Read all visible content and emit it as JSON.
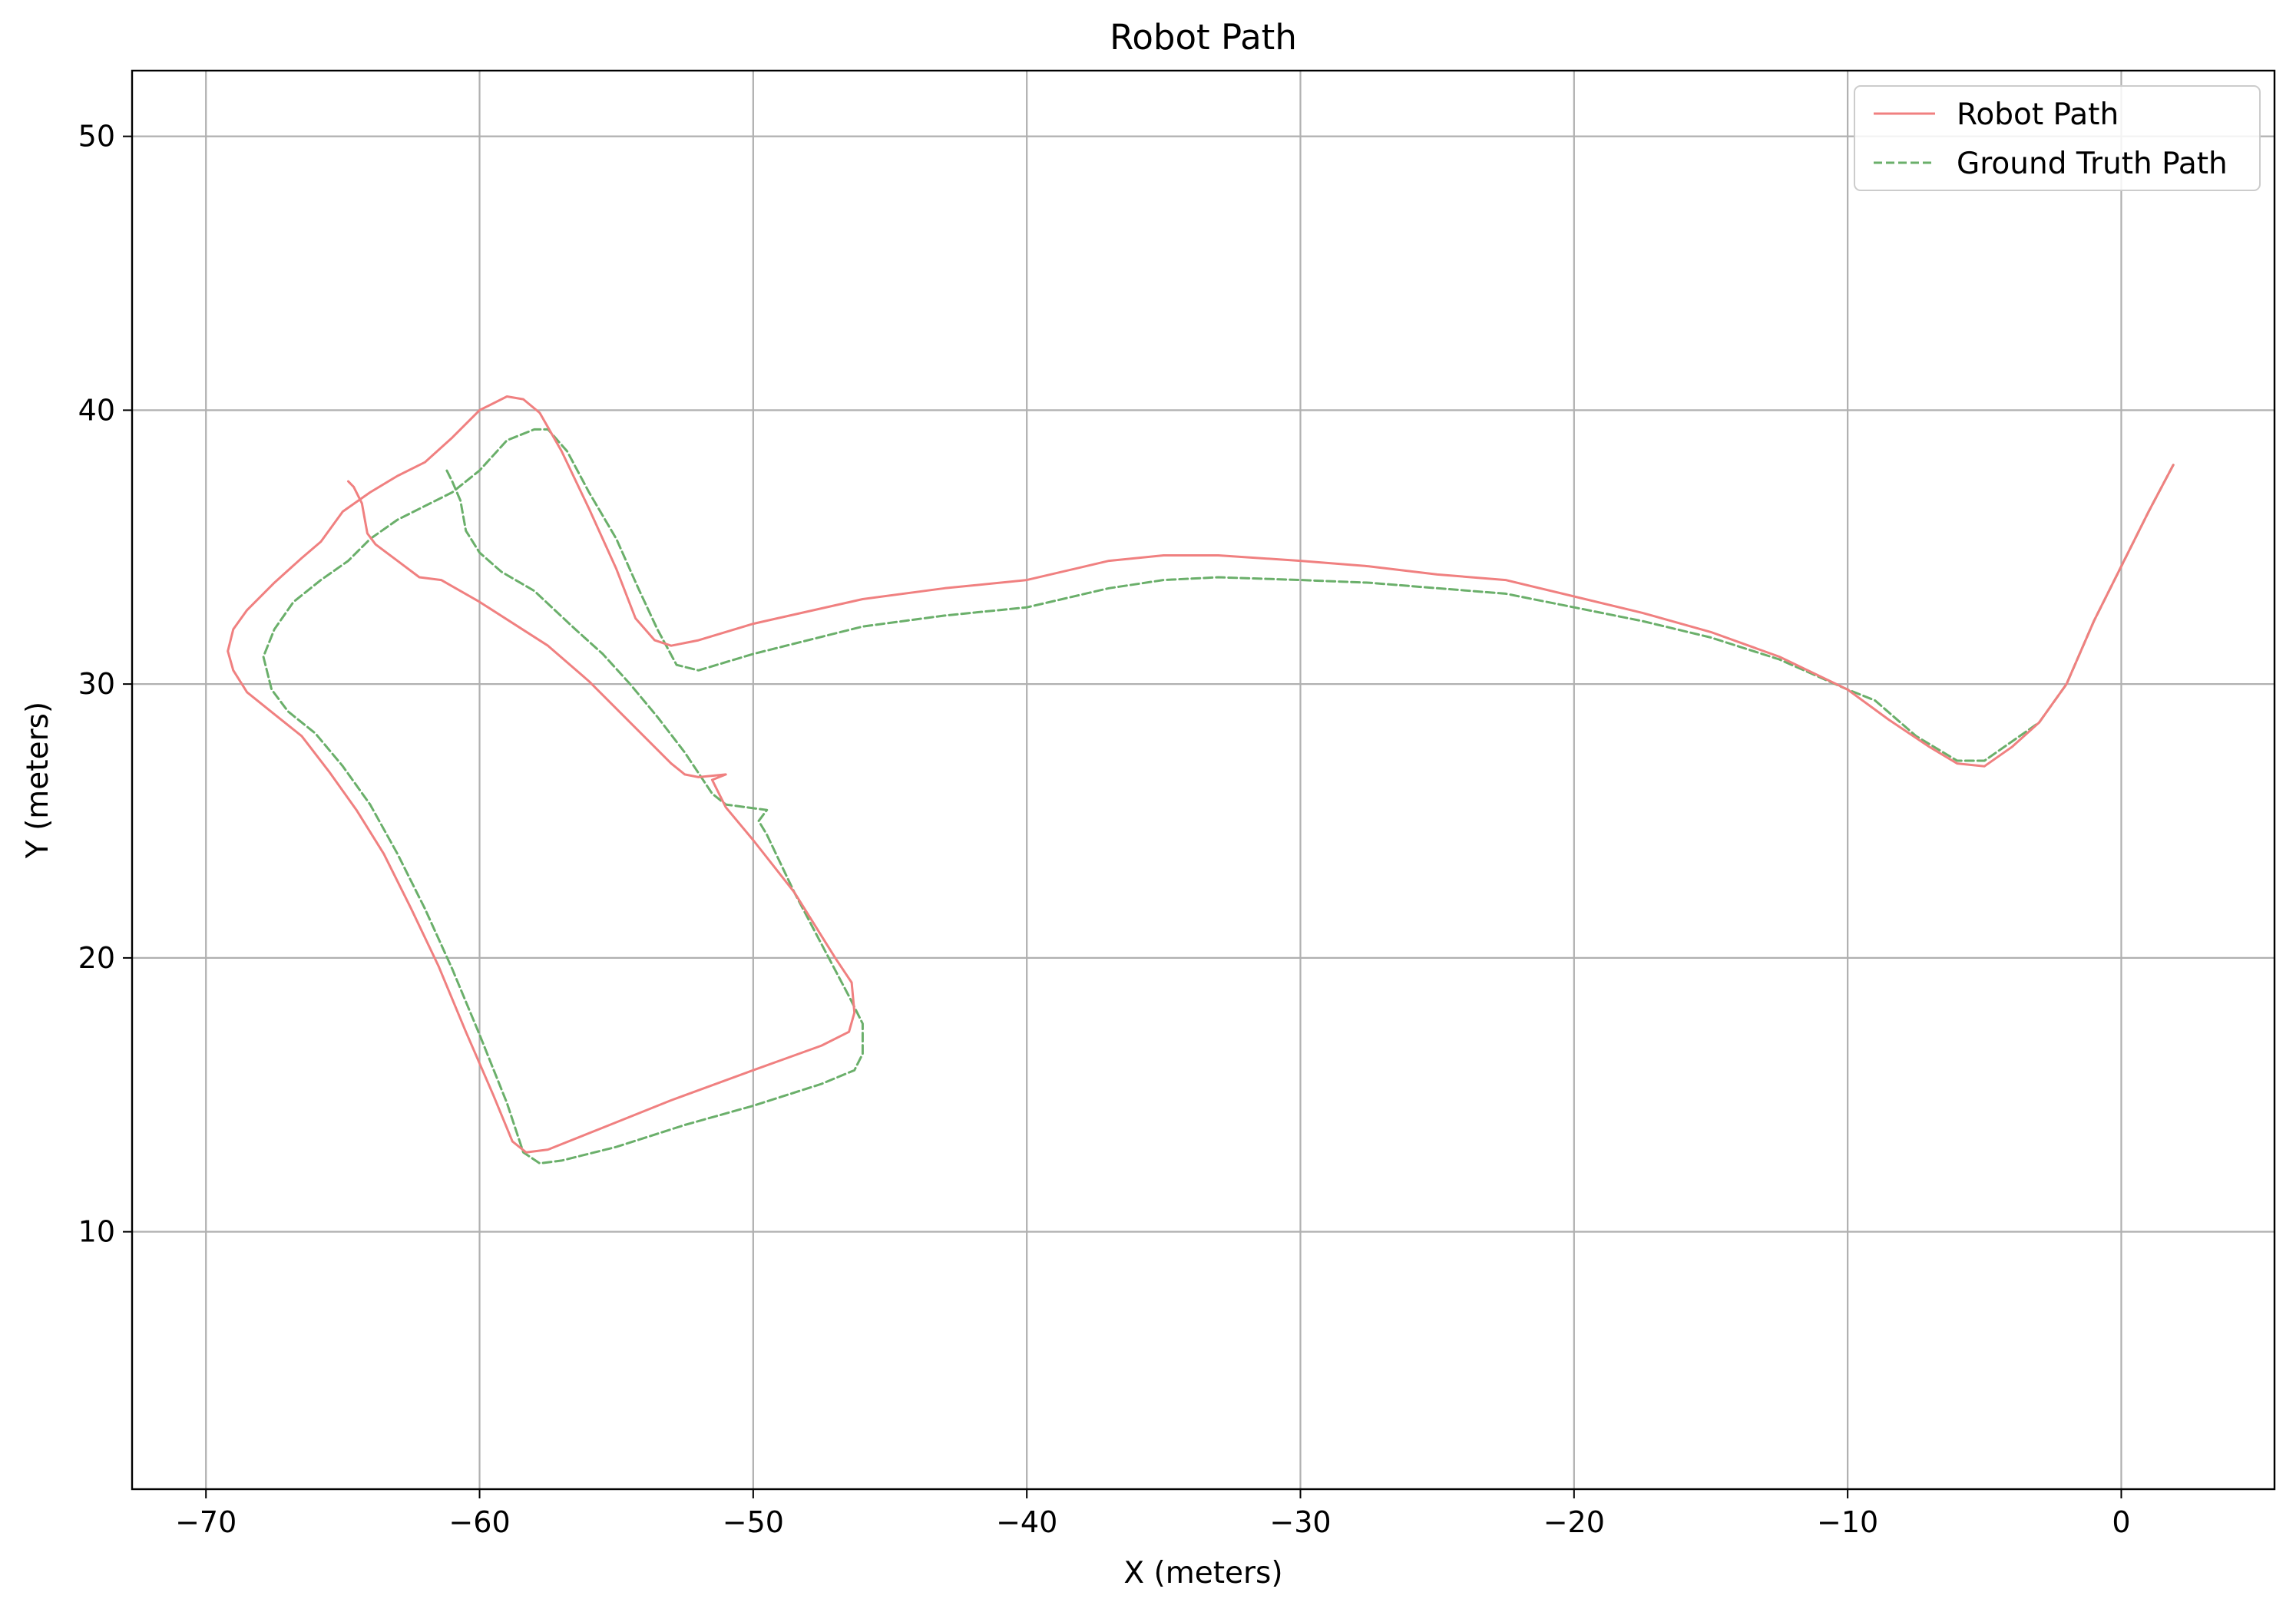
{
  "chart_data": {
    "type": "line",
    "title": "Robot Path",
    "xlabel": "X (meters)",
    "ylabel": "Y (meters)",
    "xlim": [
      -72.7,
      5.6
    ],
    "ylim": [
      0.6,
      52.4
    ],
    "xticks": [
      -70,
      -60,
      -50,
      -40,
      -30,
      -20,
      -10,
      0
    ],
    "xtick_labels": [
      "−70",
      "−60",
      "−50",
      "−40",
      "−30",
      "−20",
      "−10",
      "0"
    ],
    "yticks": [
      10,
      20,
      30,
      40,
      50
    ],
    "ytick_labels": [
      "10",
      "20",
      "30",
      "40",
      "50"
    ],
    "grid": true,
    "legend_position": "top-right",
    "series": [
      {
        "name": "Robot Path",
        "color": "#f08080",
        "style": "solid",
        "points": [
          [
            1.9,
            38.0
          ],
          [
            1.0,
            36.3
          ],
          [
            0.0,
            34.3
          ],
          [
            -1.0,
            32.3
          ],
          [
            -2.0,
            30.0
          ],
          [
            -3.0,
            28.6
          ],
          [
            -4.0,
            27.7
          ],
          [
            -5.0,
            27.0
          ],
          [
            -6.0,
            27.1
          ],
          [
            -7.0,
            27.7
          ],
          [
            -8.5,
            28.7
          ],
          [
            -10.0,
            29.8
          ],
          [
            -12.5,
            31.0
          ],
          [
            -15.0,
            31.9
          ],
          [
            -17.5,
            32.6
          ],
          [
            -20.0,
            33.2
          ],
          [
            -22.5,
            33.8
          ],
          [
            -25.0,
            34.0
          ],
          [
            -27.5,
            34.3
          ],
          [
            -30.0,
            34.5
          ],
          [
            -33.0,
            34.7
          ],
          [
            -35.0,
            34.7
          ],
          [
            -37.0,
            34.5
          ],
          [
            -40.0,
            33.8
          ],
          [
            -43.0,
            33.5
          ],
          [
            -46.0,
            33.1
          ],
          [
            -50.0,
            32.2
          ],
          [
            -52.0,
            31.6
          ],
          [
            -53.0,
            31.4
          ],
          [
            -53.6,
            31.6
          ],
          [
            -54.3,
            32.4
          ],
          [
            -55.0,
            34.2
          ],
          [
            -56.0,
            36.4
          ],
          [
            -57.0,
            38.5
          ],
          [
            -57.8,
            39.9
          ],
          [
            -58.4,
            40.4
          ],
          [
            -59.0,
            40.5
          ],
          [
            -60.0,
            40.0
          ],
          [
            -61.0,
            39.0
          ],
          [
            -62.0,
            38.1
          ],
          [
            -63.0,
            37.6
          ],
          [
            -64.0,
            37.0
          ],
          [
            -65.0,
            36.3
          ],
          [
            -65.8,
            35.2
          ],
          [
            -66.5,
            34.6
          ],
          [
            -67.5,
            33.7
          ],
          [
            -68.5,
            32.7
          ],
          [
            -69.0,
            32.0
          ],
          [
            -69.2,
            31.2
          ],
          [
            -69.0,
            30.5
          ],
          [
            -68.5,
            29.7
          ],
          [
            -67.5,
            28.9
          ],
          [
            -66.5,
            28.1
          ],
          [
            -65.5,
            26.8
          ],
          [
            -64.5,
            25.4
          ],
          [
            -63.5,
            23.8
          ],
          [
            -62.5,
            21.8
          ],
          [
            -61.5,
            19.7
          ],
          [
            -60.5,
            17.3
          ],
          [
            -59.5,
            15.0
          ],
          [
            -58.8,
            13.3
          ],
          [
            -58.3,
            12.9
          ],
          [
            -57.5,
            13.0
          ],
          [
            -55.5,
            13.8
          ],
          [
            -53.0,
            14.8
          ],
          [
            -50.0,
            15.9
          ],
          [
            -47.5,
            16.8
          ],
          [
            -46.5,
            17.3
          ],
          [
            -46.3,
            18.0
          ],
          [
            -46.4,
            19.1
          ],
          [
            -47.0,
            20.0
          ],
          [
            -48.5,
            22.4
          ],
          [
            -50.0,
            24.3
          ],
          [
            -51.0,
            25.5
          ],
          [
            -51.5,
            26.5
          ],
          [
            -51.0,
            26.7
          ],
          [
            -52.0,
            26.6
          ],
          [
            -52.5,
            26.7
          ],
          [
            -53.0,
            27.1
          ],
          [
            -54.5,
            28.6
          ],
          [
            -56.0,
            30.1
          ],
          [
            -57.5,
            31.4
          ],
          [
            -60.0,
            33.0
          ],
          [
            -61.4,
            33.8
          ],
          [
            -62.2,
            33.9
          ],
          [
            -63.0,
            34.5
          ],
          [
            -63.8,
            35.1
          ],
          [
            -64.1,
            35.5
          ],
          [
            -64.3,
            36.6
          ],
          [
            -64.6,
            37.2
          ],
          [
            -64.8,
            37.4
          ]
        ]
      },
      {
        "name": "Ground Truth Path",
        "color": "#6aaf6a",
        "style": "dashed",
        "points": [
          [
            1.9,
            38.0
          ],
          [
            1.0,
            36.3
          ],
          [
            0.0,
            34.3
          ],
          [
            -1.0,
            32.3
          ],
          [
            -2.0,
            30.0
          ],
          [
            -3.0,
            28.6
          ],
          [
            -4.0,
            27.9
          ],
          [
            -5.0,
            27.2
          ],
          [
            -6.0,
            27.2
          ],
          [
            -7.5,
            28.1
          ],
          [
            -9.0,
            29.4
          ],
          [
            -10.0,
            29.8
          ],
          [
            -12.5,
            30.9
          ],
          [
            -15.0,
            31.7
          ],
          [
            -17.5,
            32.3
          ],
          [
            -20.0,
            32.8
          ],
          [
            -22.5,
            33.3
          ],
          [
            -25.0,
            33.5
          ],
          [
            -27.5,
            33.7
          ],
          [
            -30.0,
            33.8
          ],
          [
            -33.0,
            33.9
          ],
          [
            -35.0,
            33.8
          ],
          [
            -37.0,
            33.5
          ],
          [
            -40.0,
            32.8
          ],
          [
            -43.0,
            32.5
          ],
          [
            -46.0,
            32.1
          ],
          [
            -50.0,
            31.1
          ],
          [
            -52.0,
            30.5
          ],
          [
            -52.8,
            30.7
          ],
          [
            -53.5,
            32.0
          ],
          [
            -54.2,
            33.5
          ],
          [
            -55.0,
            35.3
          ],
          [
            -56.0,
            37.0
          ],
          [
            -56.8,
            38.5
          ],
          [
            -57.5,
            39.3
          ],
          [
            -58.0,
            39.3
          ],
          [
            -59.0,
            38.9
          ],
          [
            -60.0,
            37.8
          ],
          [
            -61.0,
            37.0
          ],
          [
            -62.0,
            36.5
          ],
          [
            -63.0,
            36.0
          ],
          [
            -64.0,
            35.3
          ],
          [
            -64.8,
            34.5
          ],
          [
            -65.8,
            33.8
          ],
          [
            -66.8,
            33.0
          ],
          [
            -67.5,
            32.0
          ],
          [
            -67.9,
            31.0
          ],
          [
            -67.6,
            29.8
          ],
          [
            -67.0,
            29.0
          ],
          [
            -66.0,
            28.2
          ],
          [
            -65.0,
            27.0
          ],
          [
            -64.0,
            25.6
          ],
          [
            -63.0,
            23.8
          ],
          [
            -62.0,
            21.8
          ],
          [
            -61.0,
            19.6
          ],
          [
            -60.0,
            17.2
          ],
          [
            -59.0,
            14.7
          ],
          [
            -58.4,
            12.9
          ],
          [
            -57.8,
            12.5
          ],
          [
            -57.0,
            12.6
          ],
          [
            -55.0,
            13.1
          ],
          [
            -52.5,
            13.9
          ],
          [
            -50.0,
            14.6
          ],
          [
            -47.5,
            15.4
          ],
          [
            -46.3,
            15.9
          ],
          [
            -46.0,
            16.5
          ],
          [
            -46.0,
            17.6
          ],
          [
            -46.5,
            18.6
          ],
          [
            -47.5,
            20.5
          ],
          [
            -48.5,
            22.4
          ],
          [
            -49.5,
            24.5
          ],
          [
            -49.8,
            25.0
          ],
          [
            -49.5,
            25.4
          ],
          [
            -51.0,
            25.6
          ],
          [
            -51.5,
            26.0
          ],
          [
            -52.5,
            27.5
          ],
          [
            -53.5,
            28.8
          ],
          [
            -54.5,
            30.0
          ],
          [
            -55.5,
            31.1
          ],
          [
            -56.5,
            32.0
          ],
          [
            -58.0,
            33.4
          ],
          [
            -59.2,
            34.1
          ],
          [
            -60.0,
            34.8
          ],
          [
            -60.5,
            35.6
          ],
          [
            -60.7,
            36.7
          ],
          [
            -61.0,
            37.4
          ],
          [
            -61.2,
            37.8
          ]
        ]
      }
    ]
  }
}
